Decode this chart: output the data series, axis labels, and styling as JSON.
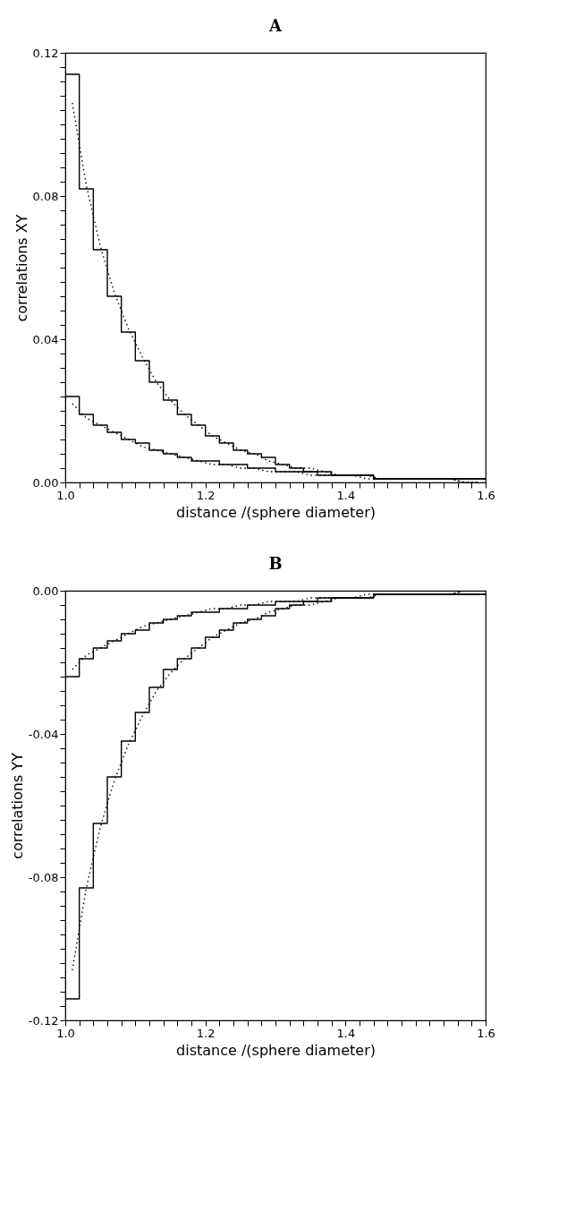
{
  "chart_data": [
    {
      "type": "step",
      "title": "A",
      "xlabel": "distance /(sphere diameter)",
      "ylabel": "correlations XY",
      "xlim": [
        1.0,
        1.6
      ],
      "ylim": [
        0.0,
        0.12
      ],
      "grid": false,
      "xticks": [
        {
          "value": 1.0,
          "label": "1.0"
        },
        {
          "value": 1.02,
          "label": null
        },
        {
          "value": 1.04,
          "label": null
        },
        {
          "value": 1.06,
          "label": null
        },
        {
          "value": 1.08,
          "label": null
        },
        {
          "value": 1.1,
          "label": null
        },
        {
          "value": 1.12,
          "label": null
        },
        {
          "value": 1.14,
          "label": null
        },
        {
          "value": 1.16,
          "label": null
        },
        {
          "value": 1.18,
          "label": null
        },
        {
          "value": 1.2,
          "label": "1.2"
        },
        {
          "value": 1.22,
          "label": null
        },
        {
          "value": 1.24,
          "label": null
        },
        {
          "value": 1.26,
          "label": null
        },
        {
          "value": 1.28,
          "label": null
        },
        {
          "value": 1.3,
          "label": null
        },
        {
          "value": 1.32,
          "label": null
        },
        {
          "value": 1.34,
          "label": null
        },
        {
          "value": 1.36,
          "label": null
        },
        {
          "value": 1.38,
          "label": null
        },
        {
          "value": 1.4,
          "label": "1.4"
        },
        {
          "value": 1.42,
          "label": null
        },
        {
          "value": 1.44,
          "label": null
        },
        {
          "value": 1.46,
          "label": null
        },
        {
          "value": 1.48,
          "label": null
        },
        {
          "value": 1.5,
          "label": null
        },
        {
          "value": 1.52,
          "label": null
        },
        {
          "value": 1.54,
          "label": null
        },
        {
          "value": 1.56,
          "label": null
        },
        {
          "value": 1.58,
          "label": null
        },
        {
          "value": 1.6,
          "label": "1.6"
        }
      ],
      "yticks": [
        {
          "value": 0.0,
          "label": "0.00"
        },
        {
          "value": 0.004,
          "label": null
        },
        {
          "value": 0.008,
          "label": null
        },
        {
          "value": 0.012,
          "label": null
        },
        {
          "value": 0.016,
          "label": null
        },
        {
          "value": 0.02,
          "label": null
        },
        {
          "value": 0.024,
          "label": null
        },
        {
          "value": 0.028,
          "label": null
        },
        {
          "value": 0.032,
          "label": null
        },
        {
          "value": 0.036,
          "label": null
        },
        {
          "value": 0.04,
          "label": "0.04"
        },
        {
          "value": 0.044,
          "label": null
        },
        {
          "value": 0.048,
          "label": null
        },
        {
          "value": 0.052,
          "label": null
        },
        {
          "value": 0.056,
          "label": null
        },
        {
          "value": 0.06,
          "label": null
        },
        {
          "value": 0.064,
          "label": null
        },
        {
          "value": 0.068,
          "label": null
        },
        {
          "value": 0.072,
          "label": null
        },
        {
          "value": 0.076,
          "label": null
        },
        {
          "value": 0.08,
          "label": "0.08"
        },
        {
          "value": 0.084,
          "label": null
        },
        {
          "value": 0.088,
          "label": null
        },
        {
          "value": 0.092,
          "label": null
        },
        {
          "value": 0.096,
          "label": null
        },
        {
          "value": 0.1,
          "label": null
        },
        {
          "value": 0.104,
          "label": null
        },
        {
          "value": 0.108,
          "label": null
        },
        {
          "value": 0.112,
          "label": null
        },
        {
          "value": 0.116,
          "label": null
        },
        {
          "value": 0.12,
          "label": "0.12"
        }
      ],
      "series": [
        {
          "color": "#000000",
          "line_style": "solid",
          "x": [
            1.0,
            1.02,
            1.04,
            1.06,
            1.08,
            1.1,
            1.12,
            1.14,
            1.16,
            1.18,
            1.2,
            1.22,
            1.24,
            1.26,
            1.28,
            1.3,
            1.32,
            1.34,
            1.36,
            1.38,
            1.4,
            1.42,
            1.44,
            1.46,
            1.48,
            1.5,
            1.52,
            1.54,
            1.56,
            1.58,
            1.6
          ],
          "values": [
            0.114,
            0.082,
            0.065,
            0.052,
            0.042,
            0.034,
            0.028,
            0.023,
            0.019,
            0.016,
            0.013,
            0.011,
            0.009,
            0.008,
            0.007,
            0.005,
            0.004,
            0.003,
            0.003,
            0.002,
            0.002,
            0.002,
            0.001,
            0.001,
            0.001,
            0.001,
            0.001,
            0.001,
            0.001,
            0.001,
            0.001
          ]
        },
        {
          "color": "#000000",
          "line_style": "solid",
          "x": [
            1.0,
            1.02,
            1.04,
            1.06,
            1.08,
            1.1,
            1.12,
            1.14,
            1.16,
            1.18,
            1.2,
            1.22,
            1.24,
            1.26,
            1.28,
            1.3,
            1.32,
            1.34,
            1.36,
            1.38,
            1.4,
            1.42,
            1.44,
            1.46,
            1.48,
            1.5,
            1.52,
            1.54,
            1.56,
            1.58,
            1.6
          ],
          "values": [
            0.024,
            0.019,
            0.016,
            0.014,
            0.012,
            0.011,
            0.009,
            0.008,
            0.007,
            0.006,
            0.006,
            0.005,
            0.005,
            0.004,
            0.004,
            0.003,
            0.003,
            0.003,
            0.002,
            0.002,
            0.002,
            0.002,
            0.001,
            0.001,
            0.001,
            0.001,
            0.001,
            0.001,
            0.001,
            0.001,
            0.001
          ]
        },
        {
          "type": "line",
          "color": "#000000",
          "line_style": "dotted",
          "x": [
            1.01,
            1.03,
            1.05,
            1.07,
            1.09,
            1.11,
            1.13,
            1.15,
            1.17,
            1.19,
            1.21,
            1.23,
            1.25,
            1.27,
            1.29,
            1.31,
            1.33,
            1.35,
            1.37,
            1.39,
            1.41,
            1.43,
            1.45,
            1.47,
            1.49,
            1.51,
            1.53,
            1.55,
            1.57,
            1.59
          ],
          "values": [
            0.106,
            0.083,
            0.066,
            0.053,
            0.043,
            0.035,
            0.028,
            0.023,
            0.019,
            0.016,
            0.013,
            0.011,
            0.009,
            0.008,
            0.006,
            0.005,
            0.004,
            0.004,
            0.003,
            0.002,
            0.002,
            0.002,
            0.001,
            0.001,
            0.001,
            0.001,
            0.001,
            0.001,
            0.0,
            0.0
          ]
        },
        {
          "type": "line",
          "color": "#000000",
          "line_style": "dotted",
          "x": [
            1.01,
            1.03,
            1.05,
            1.07,
            1.09,
            1.11,
            1.13,
            1.15,
            1.17,
            1.19,
            1.21,
            1.23,
            1.25,
            1.27,
            1.29,
            1.31,
            1.33,
            1.35,
            1.37,
            1.39,
            1.41,
            1.43,
            1.45,
            1.47,
            1.49,
            1.51,
            1.53,
            1.55,
            1.57,
            1.59
          ],
          "values": [
            0.022,
            0.018,
            0.016,
            0.014,
            0.012,
            0.01,
            0.009,
            0.008,
            0.007,
            0.006,
            0.005,
            0.005,
            0.004,
            0.004,
            0.003,
            0.003,
            0.003,
            0.002,
            0.002,
            0.002,
            0.002,
            0.001,
            0.001,
            0.001,
            0.001,
            0.001,
            0.001,
            0.001,
            0.0,
            0.0
          ]
        }
      ]
    },
    {
      "type": "step",
      "title": "B",
      "xlabel": "distance /(sphere diameter)",
      "ylabel": "correlations YY",
      "xlim": [
        1.0,
        1.6
      ],
      "ylim": [
        -0.12,
        0.0
      ],
      "grid": false,
      "xticks": [
        {
          "value": 1.0,
          "label": "1.0"
        },
        {
          "value": 1.02,
          "label": null
        },
        {
          "value": 1.04,
          "label": null
        },
        {
          "value": 1.06,
          "label": null
        },
        {
          "value": 1.08,
          "label": null
        },
        {
          "value": 1.1,
          "label": null
        },
        {
          "value": 1.12,
          "label": null
        },
        {
          "value": 1.14,
          "label": null
        },
        {
          "value": 1.16,
          "label": null
        },
        {
          "value": 1.18,
          "label": null
        },
        {
          "value": 1.2,
          "label": "1.2"
        },
        {
          "value": 1.22,
          "label": null
        },
        {
          "value": 1.24,
          "label": null
        },
        {
          "value": 1.26,
          "label": null
        },
        {
          "value": 1.28,
          "label": null
        },
        {
          "value": 1.3,
          "label": null
        },
        {
          "value": 1.32,
          "label": null
        },
        {
          "value": 1.34,
          "label": null
        },
        {
          "value": 1.36,
          "label": null
        },
        {
          "value": 1.38,
          "label": null
        },
        {
          "value": 1.4,
          "label": "1.4"
        },
        {
          "value": 1.42,
          "label": null
        },
        {
          "value": 1.44,
          "label": null
        },
        {
          "value": 1.46,
          "label": null
        },
        {
          "value": 1.48,
          "label": null
        },
        {
          "value": 1.5,
          "label": null
        },
        {
          "value": 1.52,
          "label": null
        },
        {
          "value": 1.54,
          "label": null
        },
        {
          "value": 1.56,
          "label": null
        },
        {
          "value": 1.58,
          "label": null
        },
        {
          "value": 1.6,
          "label": "1.6"
        }
      ],
      "yticks": [
        {
          "value": -0.12,
          "label": "-0.12"
        },
        {
          "value": -0.116,
          "label": null
        },
        {
          "value": -0.112,
          "label": null
        },
        {
          "value": -0.108,
          "label": null
        },
        {
          "value": -0.104,
          "label": null
        },
        {
          "value": -0.1,
          "label": null
        },
        {
          "value": -0.096,
          "label": null
        },
        {
          "value": -0.092,
          "label": null
        },
        {
          "value": -0.088,
          "label": null
        },
        {
          "value": -0.084,
          "label": null
        },
        {
          "value": -0.08,
          "label": "-0.08"
        },
        {
          "value": -0.076,
          "label": null
        },
        {
          "value": -0.072,
          "label": null
        },
        {
          "value": -0.068,
          "label": null
        },
        {
          "value": -0.064,
          "label": null
        },
        {
          "value": -0.06,
          "label": null
        },
        {
          "value": -0.056,
          "label": null
        },
        {
          "value": -0.052,
          "label": null
        },
        {
          "value": -0.048,
          "label": null
        },
        {
          "value": -0.044,
          "label": null
        },
        {
          "value": -0.04,
          "label": "-0.04"
        },
        {
          "value": -0.036,
          "label": null
        },
        {
          "value": -0.032,
          "label": null
        },
        {
          "value": -0.028,
          "label": null
        },
        {
          "value": -0.024,
          "label": null
        },
        {
          "value": -0.02,
          "label": null
        },
        {
          "value": -0.016,
          "label": null
        },
        {
          "value": -0.012,
          "label": null
        },
        {
          "value": -0.008,
          "label": null
        },
        {
          "value": -0.004,
          "label": null
        },
        {
          "value": 0.0,
          "label": "0.00"
        }
      ],
      "series": [
        {
          "color": "#000000",
          "line_style": "solid",
          "x": [
            1.0,
            1.02,
            1.04,
            1.06,
            1.08,
            1.1,
            1.12,
            1.14,
            1.16,
            1.18,
            1.2,
            1.22,
            1.24,
            1.26,
            1.28,
            1.3,
            1.32,
            1.34,
            1.36,
            1.38,
            1.4,
            1.42,
            1.44,
            1.46,
            1.48,
            1.5,
            1.52,
            1.54,
            1.56,
            1.58,
            1.6
          ],
          "values": [
            -0.114,
            -0.083,
            -0.065,
            -0.052,
            -0.042,
            -0.034,
            -0.027,
            -0.022,
            -0.019,
            -0.016,
            -0.013,
            -0.011,
            -0.009,
            -0.008,
            -0.007,
            -0.005,
            -0.004,
            -0.003,
            -0.003,
            -0.002,
            -0.002,
            -0.002,
            -0.001,
            -0.001,
            -0.001,
            -0.001,
            -0.001,
            -0.001,
            -0.001,
            -0.001,
            -0.001
          ]
        },
        {
          "color": "#000000",
          "line_style": "solid",
          "x": [
            1.0,
            1.02,
            1.04,
            1.06,
            1.08,
            1.1,
            1.12,
            1.14,
            1.16,
            1.18,
            1.2,
            1.22,
            1.24,
            1.26,
            1.28,
            1.3,
            1.32,
            1.34,
            1.36,
            1.38,
            1.4,
            1.42,
            1.44,
            1.46,
            1.48,
            1.5,
            1.52,
            1.54,
            1.56,
            1.58,
            1.6
          ],
          "values": [
            -0.024,
            -0.019,
            -0.016,
            -0.014,
            -0.012,
            -0.011,
            -0.009,
            -0.008,
            -0.007,
            -0.006,
            -0.006,
            -0.005,
            -0.005,
            -0.004,
            -0.004,
            -0.003,
            -0.003,
            -0.003,
            -0.002,
            -0.002,
            -0.002,
            -0.002,
            -0.001,
            -0.001,
            -0.001,
            -0.001,
            -0.001,
            -0.001,
            -0.001,
            -0.001,
            -0.001
          ]
        },
        {
          "type": "line",
          "color": "#000000",
          "line_style": "dotted",
          "x": [
            1.01,
            1.03,
            1.05,
            1.07,
            1.09,
            1.11,
            1.13,
            1.15,
            1.17,
            1.19,
            1.21,
            1.23,
            1.25,
            1.27,
            1.29,
            1.31,
            1.33,
            1.35,
            1.37,
            1.39,
            1.41,
            1.43,
            1.45,
            1.47,
            1.49,
            1.51,
            1.53,
            1.55,
            1.57,
            1.59
          ],
          "values": [
            -0.106,
            -0.083,
            -0.066,
            -0.053,
            -0.043,
            -0.035,
            -0.028,
            -0.023,
            -0.019,
            -0.016,
            -0.013,
            -0.011,
            -0.009,
            -0.008,
            -0.006,
            -0.005,
            -0.004,
            -0.004,
            -0.003,
            -0.002,
            -0.002,
            -0.002,
            -0.001,
            -0.001,
            -0.001,
            -0.001,
            -0.001,
            -0.001,
            0.0,
            0.0
          ]
        },
        {
          "type": "line",
          "color": "#000000",
          "line_style": "dotted",
          "x": [
            1.01,
            1.03,
            1.05,
            1.07,
            1.09,
            1.11,
            1.13,
            1.15,
            1.17,
            1.19,
            1.21,
            1.23,
            1.25,
            1.27,
            1.29,
            1.31,
            1.33,
            1.35,
            1.37,
            1.39,
            1.41,
            1.43,
            1.45,
            1.47,
            1.49,
            1.51,
            1.53,
            1.55,
            1.57,
            1.59
          ],
          "values": [
            -0.022,
            -0.018,
            -0.016,
            -0.014,
            -0.012,
            -0.01,
            -0.009,
            -0.008,
            -0.007,
            -0.006,
            -0.005,
            -0.005,
            -0.004,
            -0.004,
            -0.003,
            -0.003,
            -0.003,
            -0.002,
            -0.002,
            -0.002,
            -0.002,
            -0.001,
            -0.001,
            -0.001,
            -0.001,
            -0.001,
            -0.001,
            -0.001,
            0.0,
            0.0
          ]
        }
      ]
    }
  ]
}
